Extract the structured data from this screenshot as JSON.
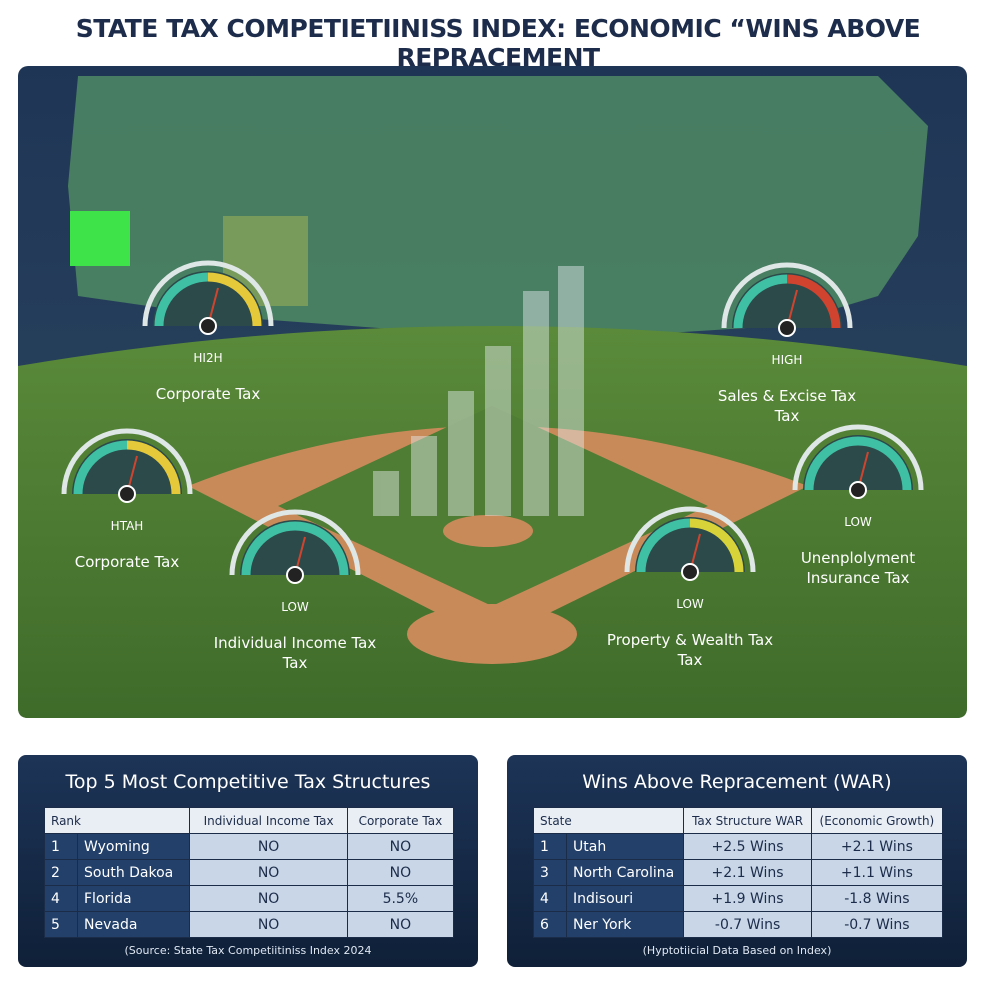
{
  "title": "STATE TAX COMPETIETIINISS INDEX: ECONOMIC “WINS ABOVE REPRACEMENT",
  "gauges": [
    {
      "level": "HI2H",
      "label": [
        "Corporate Tax"
      ]
    },
    {
      "level": "HIGH",
      "label": [
        "Sales & Excise Tax",
        "Tax"
      ]
    },
    {
      "level": "HTAH",
      "label": [
        "Corporate Tax"
      ]
    },
    {
      "level": "LOW",
      "label": [
        "Individual Income Tax",
        "Tax"
      ]
    },
    {
      "level": "LOW",
      "label": [
        "Property & Wealth Tax",
        "Tax"
      ]
    },
    {
      "level": "LOW",
      "label": [
        "Unenplolyment",
        "Insurance Tax"
      ]
    }
  ],
  "tables": [
    {
      "title": "Top 5 Most Competitive Tax Structures",
      "headers": [
        "Rank",
        "Individual Income Tax",
        "Corporate Tax"
      ],
      "rows": [
        [
          "1",
          "Wyoming",
          "NO",
          "NO"
        ],
        [
          "2",
          "South Dakoa",
          "NO",
          "NO"
        ],
        [
          "4",
          "Florida",
          "NO",
          "5.5%"
        ],
        [
          "5",
          "Nevada",
          "NO",
          "NO"
        ]
      ],
      "footnote": "(Source: State Tax Competiitiniss Index 2024"
    },
    {
      "title": "Wins Above Repracement (WAR)",
      "headers": [
        "State",
        "Tax Structure WAR",
        "(Economic Growth)"
      ],
      "rows": [
        [
          "1",
          "Utah",
          "+2.5 Wins",
          "+2.1 Wins"
        ],
        [
          "3",
          "North Carolina",
          "+2.1 Wins",
          "+1.1 Wins"
        ],
        [
          "4",
          "Indisouri",
          "+1.9 Wins",
          "-1.8 Wins"
        ],
        [
          "6",
          "Ner York",
          "-0.7 Wins",
          "-0.7 Wins"
        ]
      ],
      "footnote": "(Hyptotiicial Data Based on Index)"
    }
  ]
}
